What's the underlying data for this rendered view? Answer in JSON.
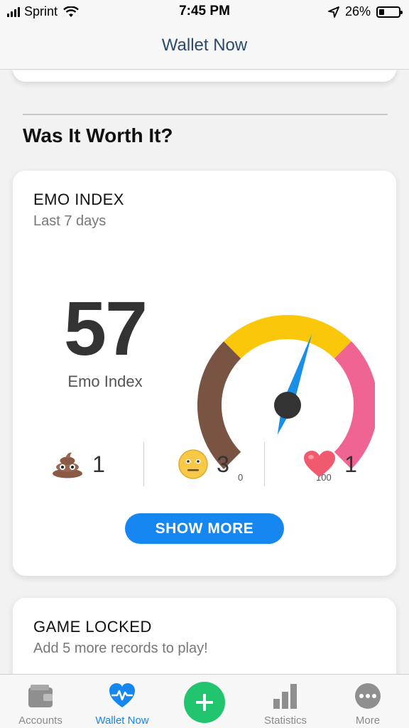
{
  "status_bar": {
    "carrier": "Sprint",
    "time": "7:45 PM",
    "battery_percent": "26%",
    "battery_level": 0.26
  },
  "nav": {
    "title": "Wallet Now"
  },
  "section": {
    "title": "Was It Worth It?"
  },
  "emo_card": {
    "title": "EMO INDEX",
    "subtitle": "Last 7 days",
    "value": "57",
    "value_label": "Emo Index",
    "gauge": {
      "min_label": "0",
      "max_label": "100",
      "value": 57,
      "colors": {
        "low": "#7a5443",
        "mid": "#fbc70a",
        "high": "#f06493",
        "needle": "#1a8fe8",
        "hub": "#333333"
      }
    },
    "counts": [
      {
        "icon": "poop-icon",
        "value": "1"
      },
      {
        "icon": "neutral-face-icon",
        "value": "3"
      },
      {
        "icon": "heart-icon",
        "value": "1"
      }
    ],
    "show_more_label": "SHOW MORE"
  },
  "game_card": {
    "title": "GAME LOCKED",
    "subtitle": "Add 5 more records to play!"
  },
  "tab_bar": {
    "tabs": [
      {
        "label": "Accounts",
        "icon": "wallet-icon",
        "active": false
      },
      {
        "label": "Wallet Now",
        "icon": "heart-pulse-icon",
        "active": true
      },
      {
        "label": "",
        "icon": "plus-icon",
        "active": false
      },
      {
        "label": "Statistics",
        "icon": "bar-chart-icon",
        "active": false
      },
      {
        "label": "More",
        "icon": "more-icon",
        "active": false
      }
    ],
    "accent": "#1686f0",
    "add_color": "#21c56d"
  }
}
